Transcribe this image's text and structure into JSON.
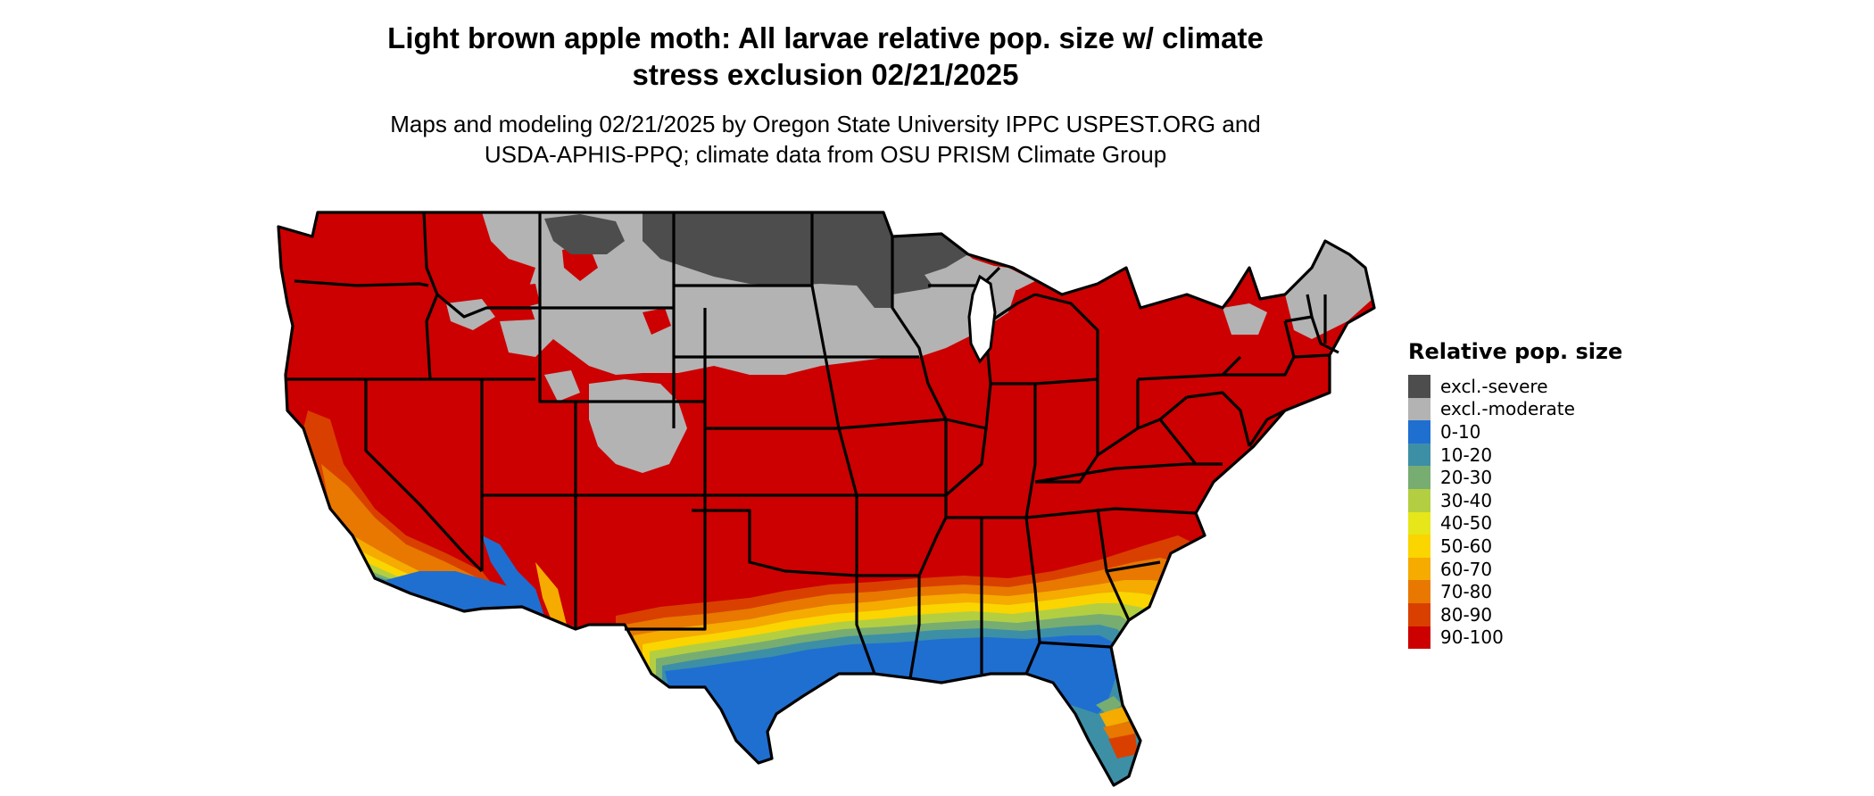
{
  "title_line1": "Light brown apple moth: All larvae relative pop. size w/ climate",
  "title_line2": "stress exclusion 02/21/2025",
  "subtitle_line1": "Maps and modeling 02/21/2025 by Oregon State University IPPC USPEST.ORG and",
  "subtitle_line2": "USDA-APHIS-PPQ; climate data from OSU PRISM Climate Group",
  "legend": {
    "title": "Relative pop. size",
    "items": [
      {
        "label": "excl.-severe",
        "color": "#4d4d4d"
      },
      {
        "label": "excl.-moderate",
        "color": "#b3b3b3"
      },
      {
        "label": "0-10",
        "color": "#1f6fd1"
      },
      {
        "label": "10-20",
        "color": "#3d8fa6"
      },
      {
        "label": "20-30",
        "color": "#78ad72"
      },
      {
        "label": "30-40",
        "color": "#b3cf41"
      },
      {
        "label": "40-50",
        "color": "#e6e61a"
      },
      {
        "label": "50-60",
        "color": "#fad500"
      },
      {
        "label": "60-70",
        "color": "#f5ab00"
      },
      {
        "label": "70-80",
        "color": "#e87800"
      },
      {
        "label": "80-90",
        "color": "#d94000"
      },
      {
        "label": "90-100",
        "color": "#cc0000"
      }
    ]
  }
}
